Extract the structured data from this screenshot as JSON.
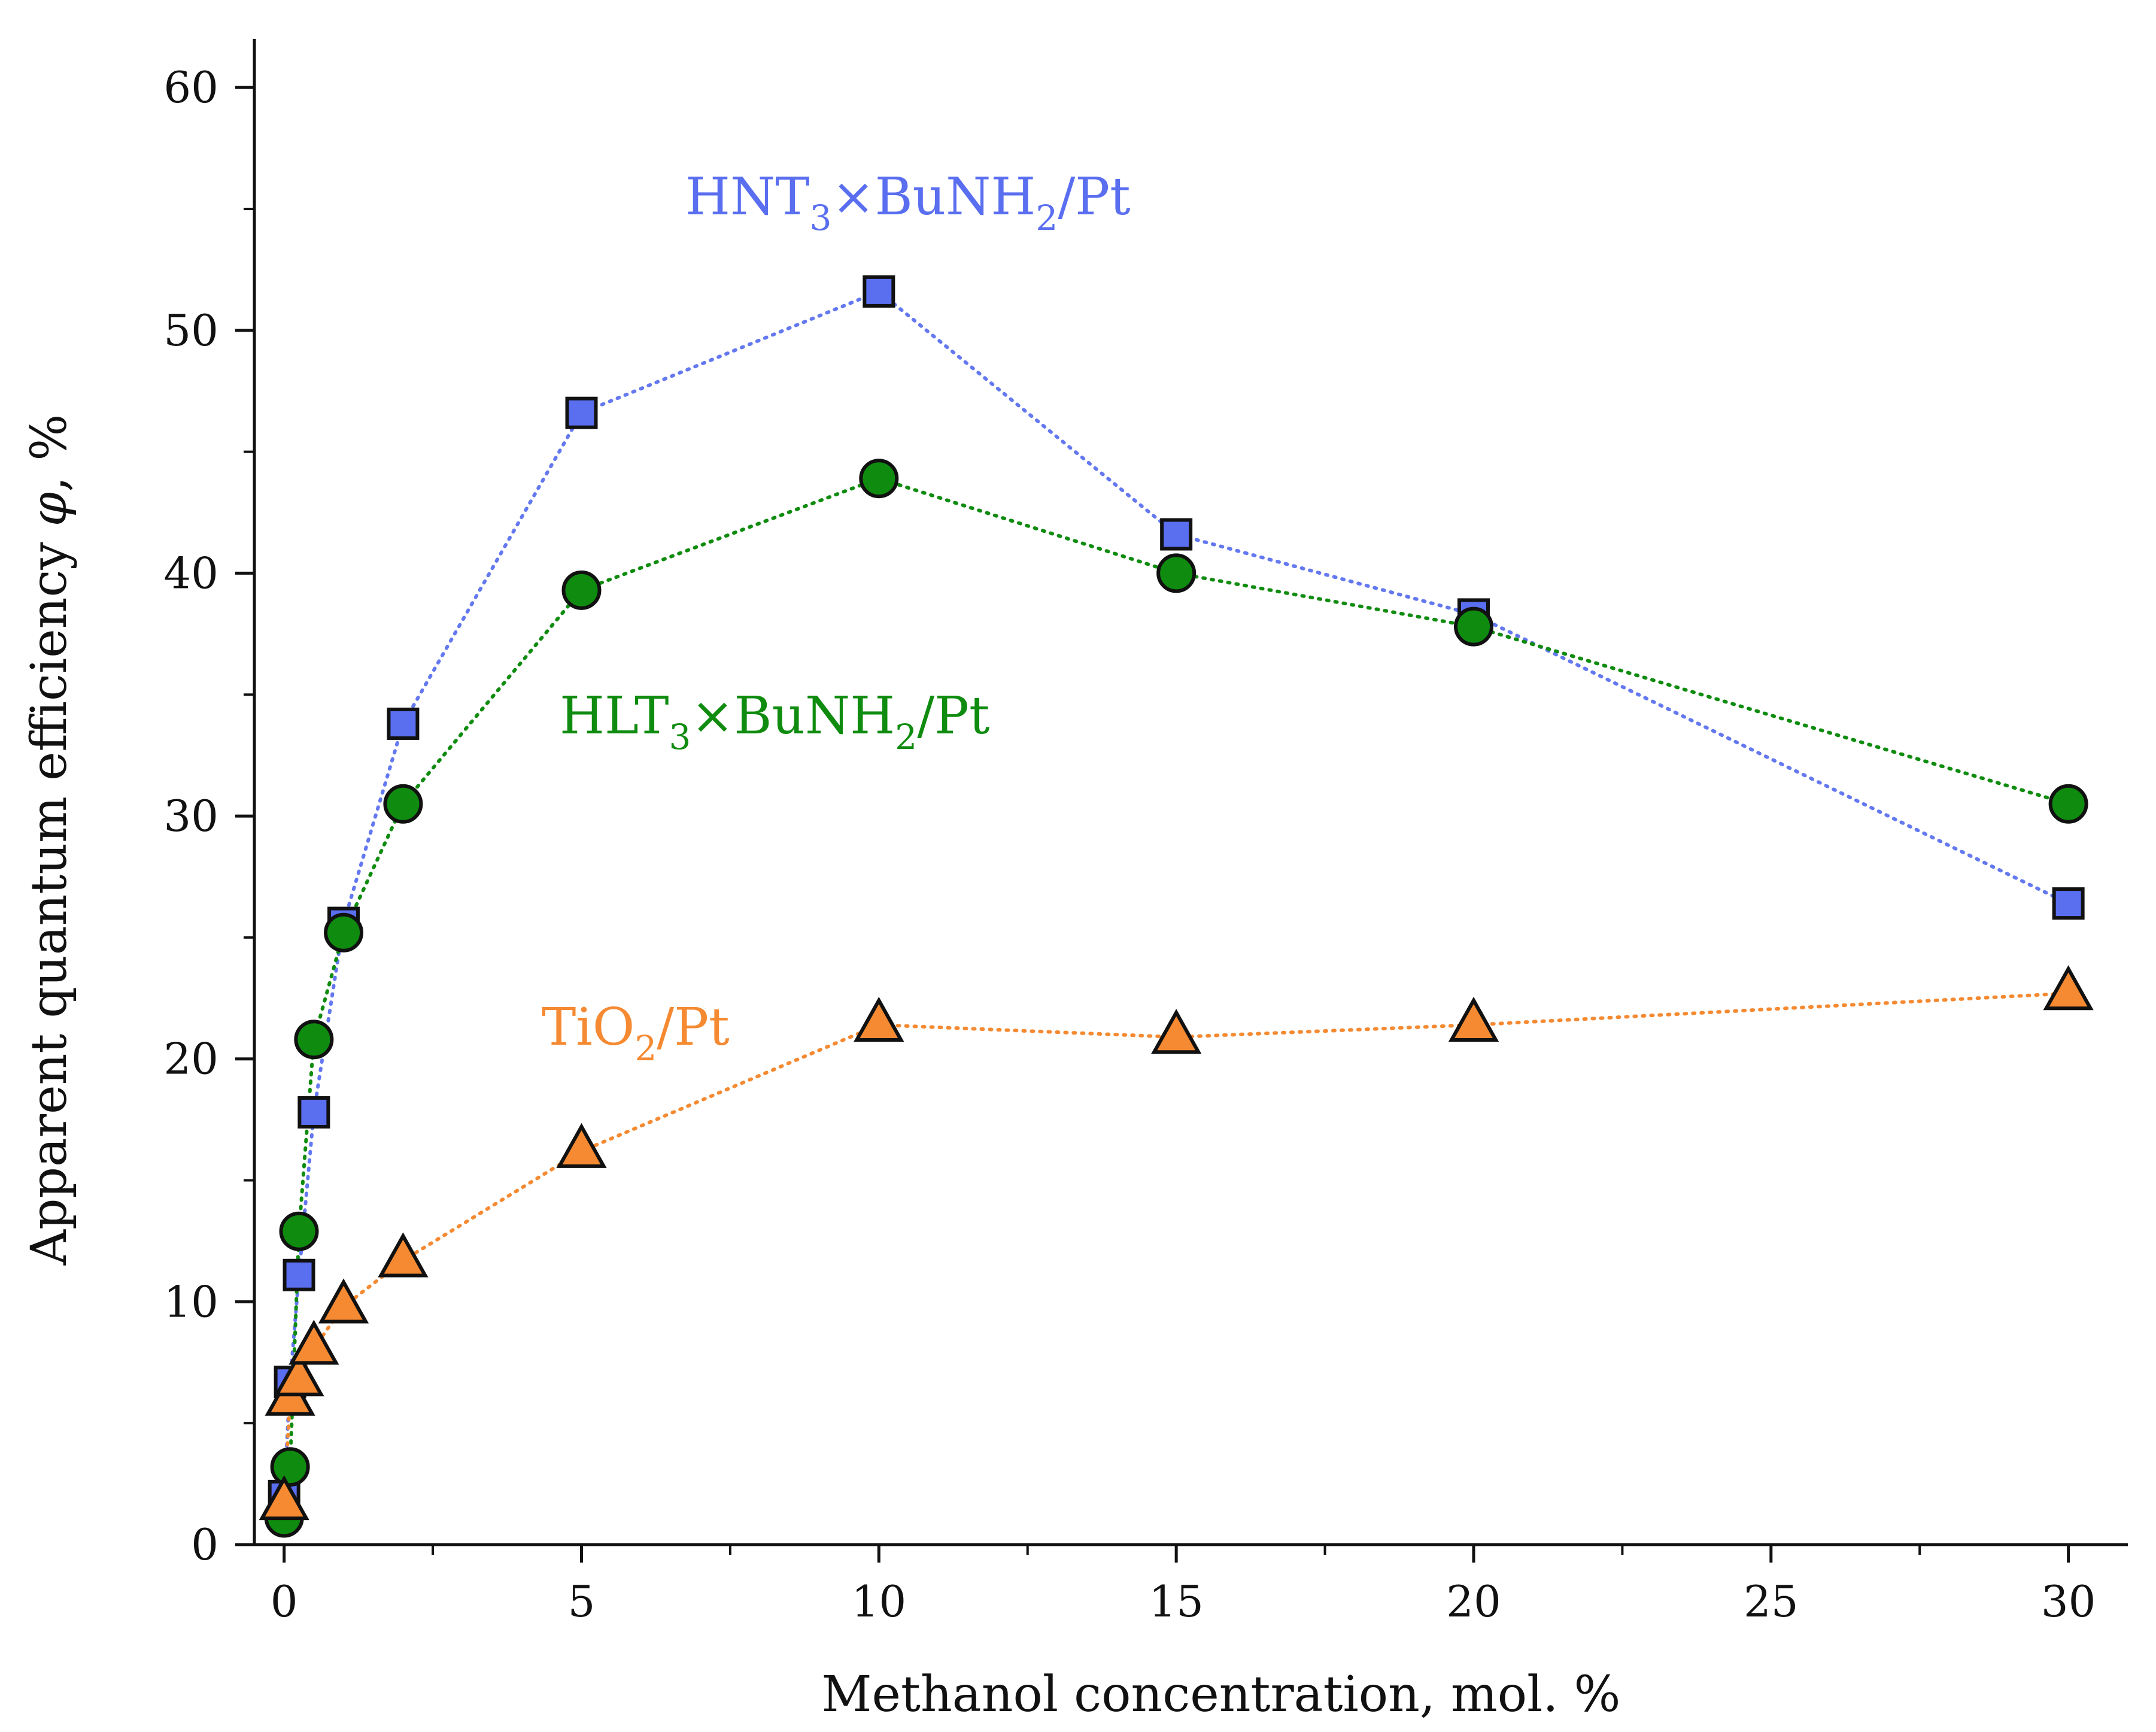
{
  "chart_data": {
    "type": "scatter",
    "title": "",
    "xlabel": "Methanol  concentration, mol. %",
    "ylabel_main": "Apparent quantum efficiency ",
    "ylabel_symbol": "φ",
    "ylabel_tail": ", %",
    "xlim": [
      -0.5,
      31
    ],
    "ylim": [
      0,
      62
    ],
    "xticks": [
      0,
      5,
      10,
      15,
      20,
      25,
      30
    ],
    "yticks": [
      0,
      10,
      20,
      30,
      40,
      50,
      60
    ],
    "xtick_labels": [
      "0",
      "5",
      "10",
      "15",
      "20",
      "25",
      "30"
    ],
    "ytick_labels": [
      "0",
      "10",
      "20",
      "30",
      "40",
      "50",
      "60"
    ],
    "grid": false,
    "series": [
      {
        "name": "HNT3×BuNH2/Pt",
        "label_parts": [
          "HNT",
          "3",
          "×BuNH",
          "2",
          "/Pt"
        ],
        "marker": "square",
        "color": "#5a6ef0",
        "line_color": "#6478f0",
        "x": [
          0.0,
          0.1,
          0.25,
          0.5,
          1.0,
          2.0,
          5.0,
          10.0,
          15.0,
          20.0,
          30.0
        ],
        "y": [
          2.0,
          6.7,
          11.1,
          17.8,
          25.6,
          33.8,
          46.6,
          51.6,
          41.6,
          38.3,
          26.4
        ]
      },
      {
        "name": "HLT3×BuNH2/Pt",
        "label_parts": [
          "HLT",
          "3",
          "×BuNH",
          "2",
          "/Pt"
        ],
        "marker": "circle",
        "color": "#0f8c0f",
        "line_color": "#0f8c0f",
        "x": [
          0.0,
          0.1,
          0.25,
          0.5,
          1.0,
          2.0,
          5.0,
          10.0,
          15.0,
          20.0,
          30.0
        ],
        "y": [
          1.1,
          3.2,
          12.9,
          20.8,
          25.2,
          30.5,
          39.3,
          43.9,
          40.0,
          37.8,
          30.5
        ]
      },
      {
        "name": "TiO2/Pt",
        "label_parts": [
          "TiO",
          "2",
          "/Pt"
        ],
        "marker": "triangle",
        "color": "#f58a32",
        "line_color": "#f58a32",
        "x": [
          0.0,
          0.1,
          0.25,
          0.5,
          1.0,
          2.0,
          5.0,
          10.0,
          15.0,
          20.0,
          30.0
        ],
        "y": [
          1.7,
          6.0,
          6.8,
          8.1,
          9.8,
          11.7,
          16.2,
          21.4,
          20.9,
          21.4,
          22.7
        ]
      }
    ]
  }
}
